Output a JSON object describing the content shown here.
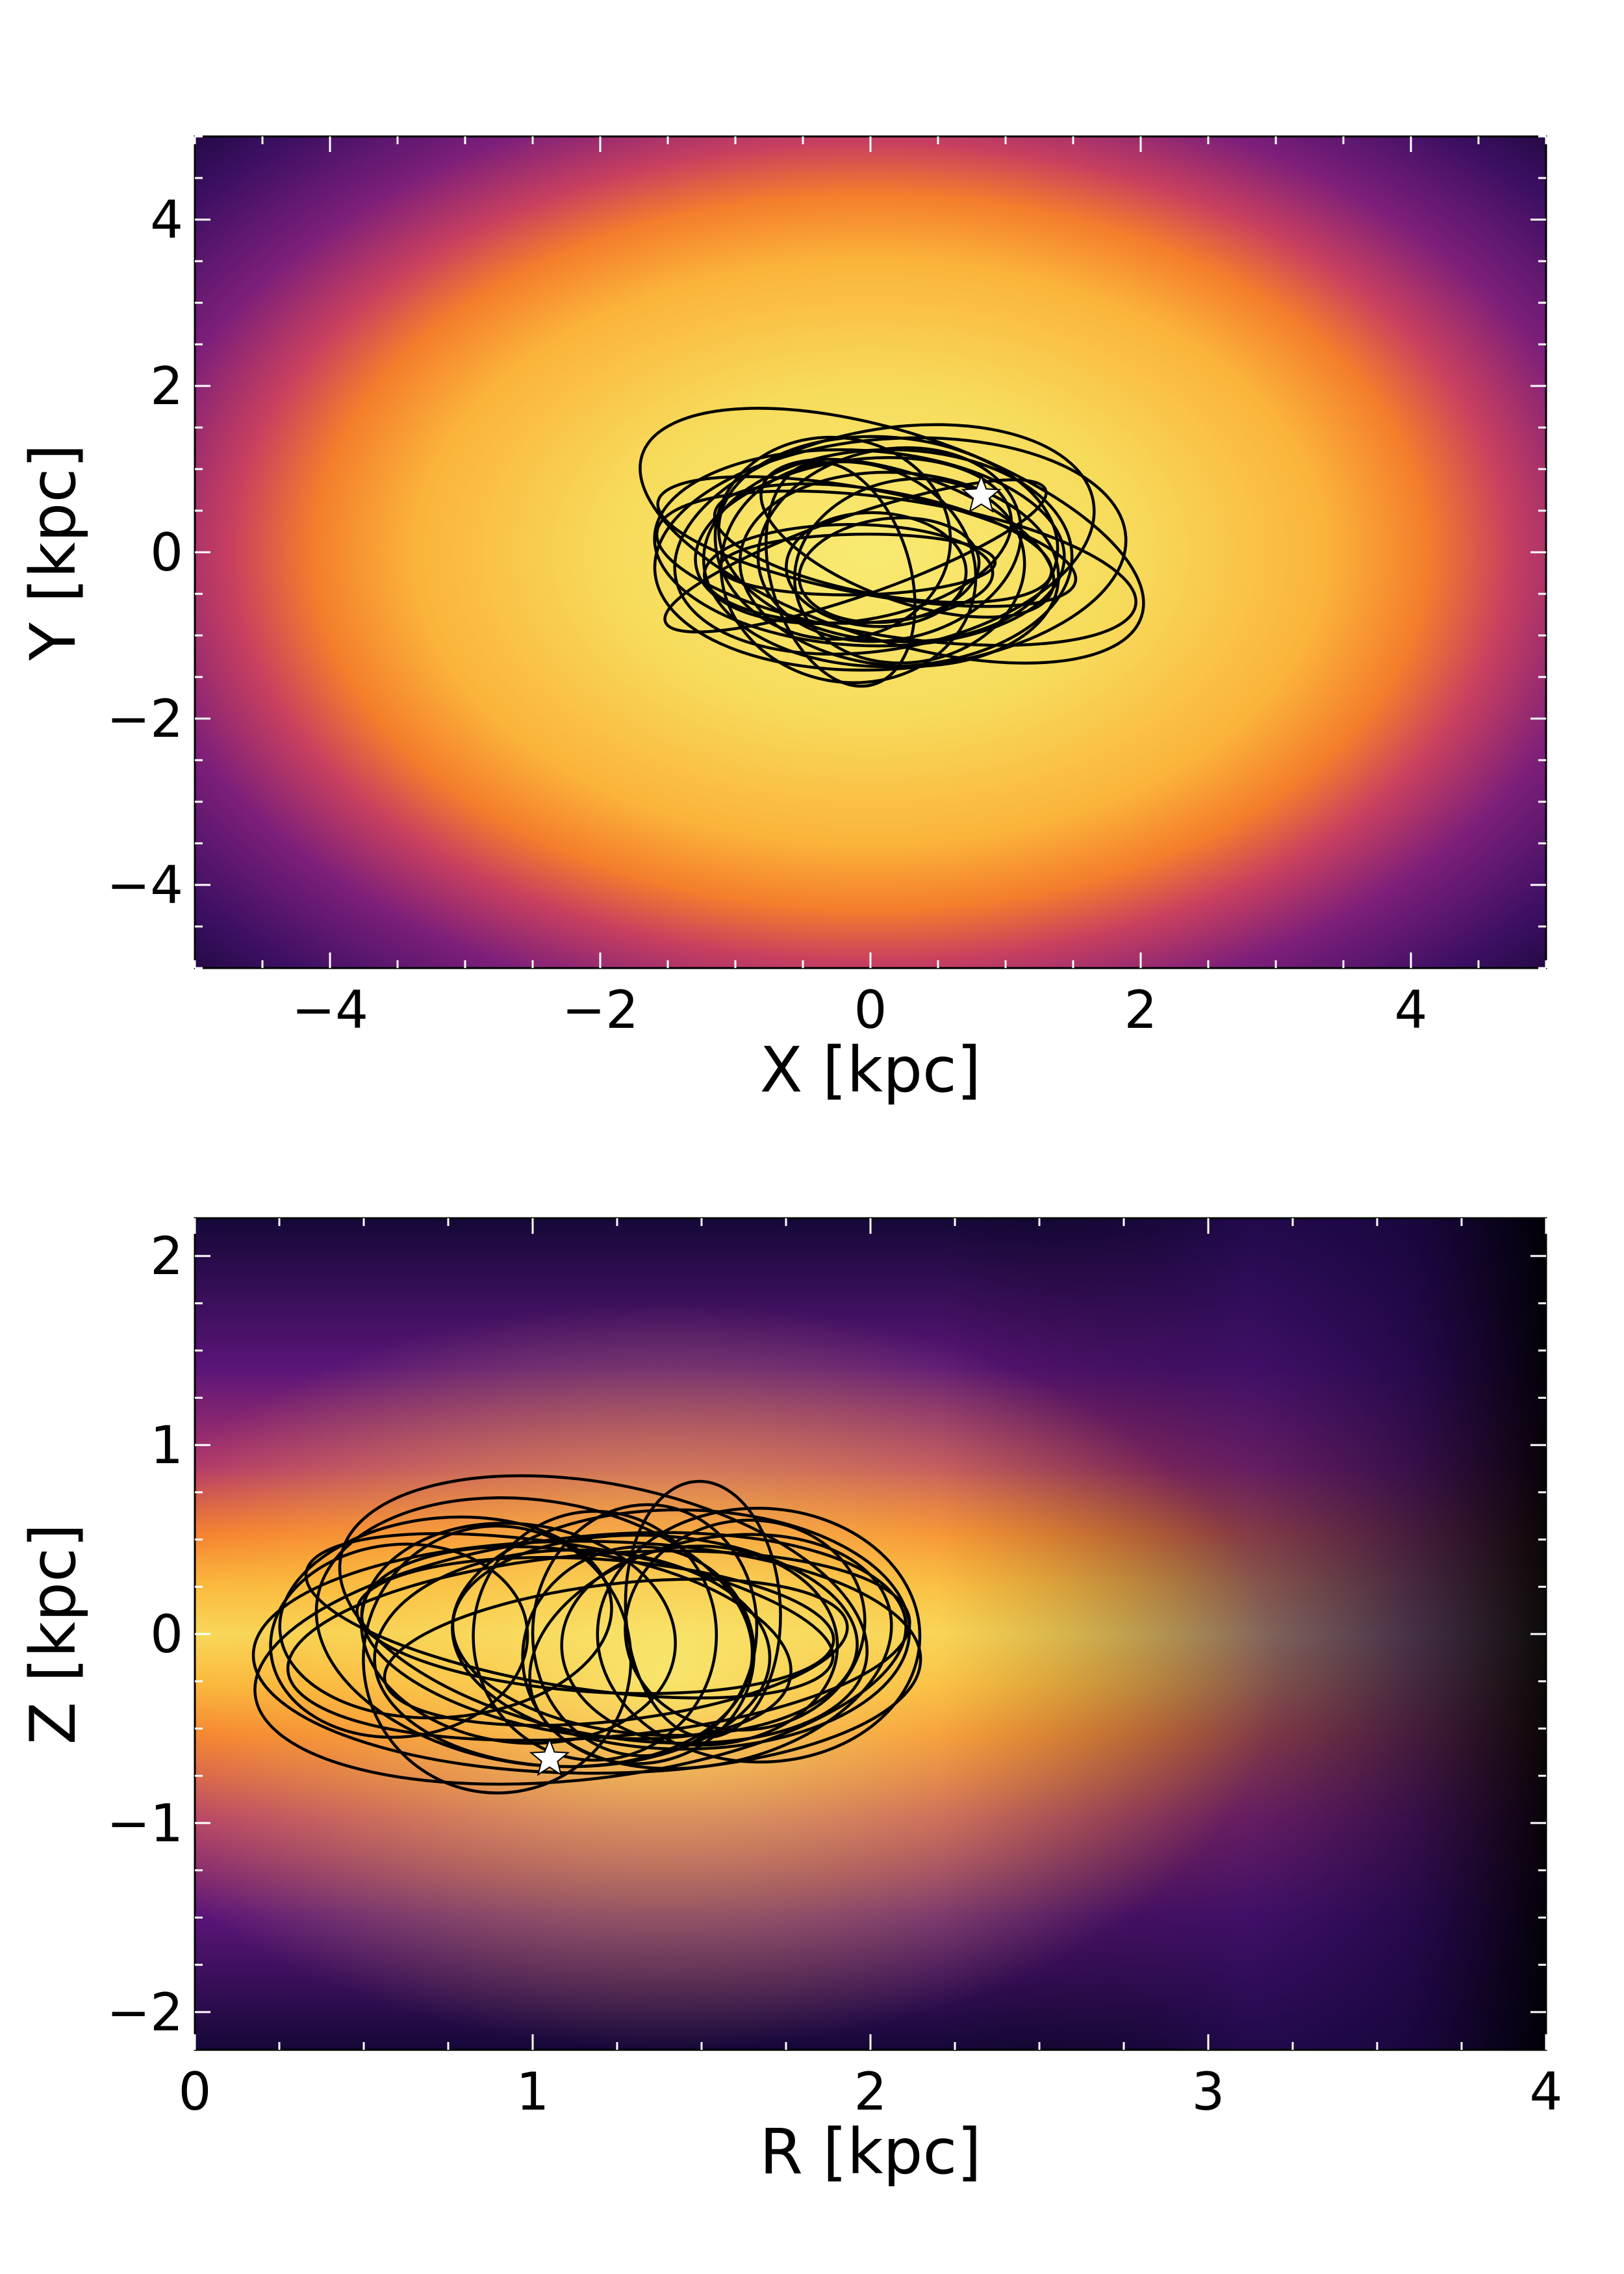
{
  "chart_data": [
    {
      "type": "heatmap",
      "title": "",
      "xlabel": "X [kpc]",
      "ylabel": "Y [kpc]",
      "xlim": [
        -5,
        5
      ],
      "ylim": [
        -5,
        5
      ],
      "xticks": [
        -4,
        -2,
        0,
        2,
        4
      ],
      "yticks": [
        -4,
        -2,
        0,
        2,
        4
      ],
      "xtick_labels": [
        "−4",
        "−2",
        "0",
        "2",
        "4"
      ],
      "ytick_labels": [
        "−4",
        "−2",
        "0",
        "2",
        "4"
      ],
      "colormap": [
        "#000004",
        "#2a0b5a",
        "#6a1a7a",
        "#b8366a",
        "#f26a2c",
        "#fca636",
        "#f6e56b"
      ],
      "density_center": [
        0,
        0
      ],
      "density_scale": [
        2.9,
        2.6
      ],
      "orbit": {
        "color": "#000000",
        "loops": 22,
        "a_range": [
          0.45,
          1.95
        ],
        "b_range": [
          0.35,
          1.45
        ],
        "center": [
          0.0,
          -0.05
        ]
      },
      "star_marker": {
        "x": 0.82,
        "y": 0.68,
        "color": "#ffffff"
      },
      "grid": false
    },
    {
      "type": "heatmap",
      "title": "",
      "xlabel": "R [kpc]",
      "ylabel": "Z [kpc]",
      "xlim": [
        0,
        4
      ],
      "ylim": [
        -2.2,
        2.2
      ],
      "xticks": [
        0,
        1,
        2,
        3,
        4
      ],
      "yticks": [
        -2,
        -1,
        0,
        1,
        2
      ],
      "xtick_labels": [
        "0",
        "1",
        "2",
        "3",
        "4"
      ],
      "ytick_labels": [
        "−2",
        "−1",
        "0",
        "1",
        "2"
      ],
      "colormap": [
        "#000004",
        "#2a0b5a",
        "#6a1a7a",
        "#b8366a",
        "#f26a2c",
        "#fca636",
        "#f6e56b"
      ],
      "orbit": {
        "color": "#000000",
        "loops": 24,
        "r_range": [
          0.15,
          2.15
        ],
        "z_range": [
          -0.78,
          0.78
        ]
      },
      "star_marker": {
        "x": 1.05,
        "y": -0.66,
        "color": "#ffffff"
      },
      "grid": false
    }
  ]
}
